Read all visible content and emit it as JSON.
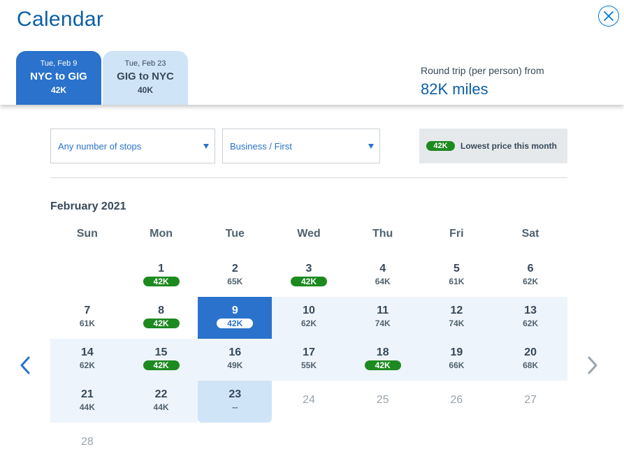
{
  "header": {
    "title": "Calendar",
    "close_icon": "close-circle-icon"
  },
  "tabs": [
    {
      "date": "Tue, Feb 9",
      "route": "NYC to GIG",
      "price": "42K"
    },
    {
      "date": "Tue, Feb 23",
      "route": "GIG to NYC",
      "price": "40K"
    }
  ],
  "round_trip": {
    "label": "Round trip (per person) from",
    "value": "82K miles"
  },
  "filters": {
    "stops": "Any number of stops",
    "cabin": "Business / First"
  },
  "legend": {
    "badge": "42K",
    "text": "Lowest price this month"
  },
  "calendar": {
    "month": "February 2021",
    "weekdays": [
      "Sun",
      "Mon",
      "Tue",
      "Wed",
      "Thu",
      "Fri",
      "Sat"
    ],
    "days": [
      {
        "day": "1",
        "price": "42K",
        "lowest": true
      },
      {
        "day": "2",
        "price": "65K"
      },
      {
        "day": "3",
        "price": "42K",
        "lowest": true
      },
      {
        "day": "4",
        "price": "64K"
      },
      {
        "day": "5",
        "price": "61K"
      },
      {
        "day": "6",
        "price": "62K"
      },
      {
        "day": "7",
        "price": "61K"
      },
      {
        "day": "8",
        "price": "42K",
        "lowest": true
      },
      {
        "day": "9",
        "price": "42K",
        "lowest": true,
        "state": "selected"
      },
      {
        "day": "10",
        "price": "62K",
        "state": "range"
      },
      {
        "day": "11",
        "price": "74K",
        "state": "range"
      },
      {
        "day": "12",
        "price": "74K",
        "state": "range"
      },
      {
        "day": "13",
        "price": "62K",
        "state": "range"
      },
      {
        "day": "14",
        "price": "62K",
        "state": "range"
      },
      {
        "day": "15",
        "price": "42K",
        "lowest": true,
        "state": "range"
      },
      {
        "day": "16",
        "price": "49K",
        "state": "range"
      },
      {
        "day": "17",
        "price": "55K",
        "state": "range"
      },
      {
        "day": "18",
        "price": "42K",
        "lowest": true,
        "state": "range"
      },
      {
        "day": "19",
        "price": "66K",
        "state": "range"
      },
      {
        "day": "20",
        "price": "68K",
        "state": "range"
      },
      {
        "day": "21",
        "price": "44K",
        "state": "range"
      },
      {
        "day": "22",
        "price": "44K",
        "state": "range"
      },
      {
        "day": "23",
        "price": "--",
        "state": "return"
      },
      {
        "day": "24",
        "state": "disabled"
      },
      {
        "day": "25",
        "state": "disabled"
      },
      {
        "day": "26",
        "state": "disabled"
      },
      {
        "day": "27",
        "state": "disabled"
      },
      {
        "day": "28",
        "state": "disabled"
      }
    ],
    "first_weekday_index": 1
  },
  "nav": {
    "prev_icon": "chevron-left-icon",
    "next_icon": "chevron-right-icon"
  },
  "colors": {
    "accent": "#2a72cc",
    "title": "#0b5fa4",
    "lowest_badge": "#1d8a20",
    "range_bg": "#eef4fb",
    "return_bg": "#d0e4f7"
  }
}
